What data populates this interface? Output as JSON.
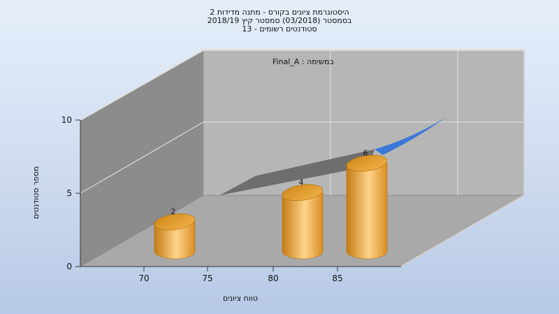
{
  "header": {
    "title_line1": "היסטוגרמת ציונים בקורס - מתנה מדידות 2",
    "title_line2": "בסמסטר  (03/2018)  סמסטר קיץ 2018/19",
    "title_line3": "סטודנטים רשומים - 13"
  },
  "chart_data": {
    "type": "bar",
    "style": "3d-cylinder",
    "x_tick_labels": [
      "70",
      "75",
      "80",
      "85"
    ],
    "categories": [
      "70",
      "80",
      "85"
    ],
    "values": [
      2,
      4,
      6
    ],
    "data_labels": [
      "2",
      "4",
      "6"
    ],
    "y_ticks": [
      0,
      5,
      10
    ],
    "ylim": [
      0,
      10
    ],
    "ylabel": "מספר סטודנטים",
    "xlabel": "טווח ציונים",
    "annotation": "Final_A : במשימה",
    "grid": true,
    "colors": {
      "bar": "#f0a830",
      "bar_highlight": "#ffd890",
      "bar_shadow": "#c07a10",
      "back_wall": "#b4b4b4",
      "side_wall": "#8a8a8a",
      "floor": "#a8a8a8",
      "curve": "#3a78d8",
      "curve_shadow": "#6e6e6e"
    }
  }
}
